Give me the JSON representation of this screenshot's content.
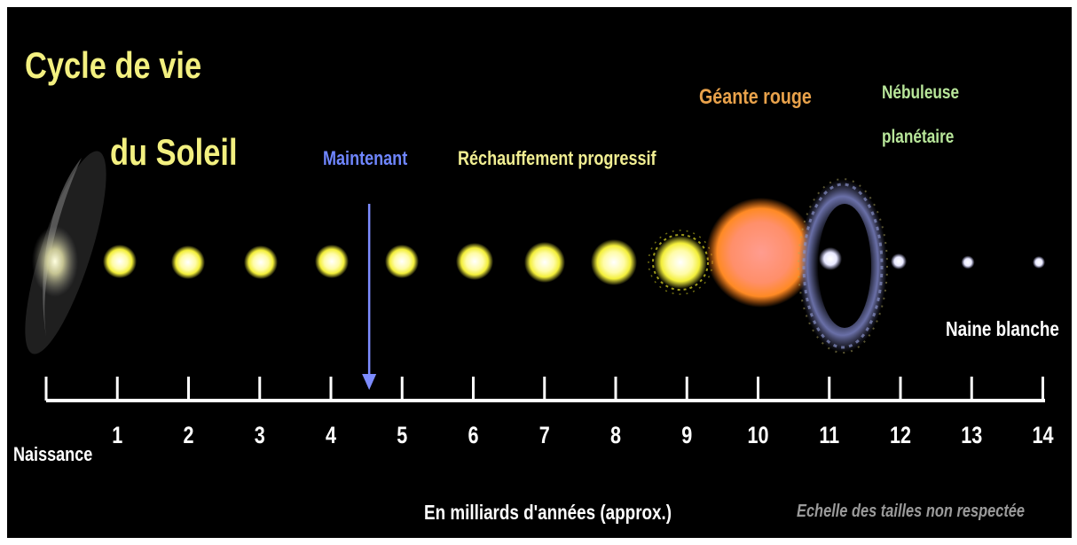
{
  "title": {
    "line1": "Cycle de vie",
    "line2": "du Soleil"
  },
  "labels": {
    "now": "Maintenant",
    "warming": "Réchauffement progressif",
    "red_giant": "Géante rouge",
    "nebula_line1": "Nébuleuse",
    "nebula_line2": "planétaire",
    "white_dwarf": "Naine blanche",
    "birth": "Naissance"
  },
  "axis": {
    "unit_label": "En milliards d'années (approx.)",
    "ticks": [
      "1",
      "2",
      "3",
      "4",
      "5",
      "6",
      "7",
      "8",
      "9",
      "10",
      "11",
      "12",
      "13",
      "14"
    ]
  },
  "note": "Echelle des tailles non respectée",
  "now_marker_billion_years": 4.6,
  "stages": [
    {
      "kind": "nebula"
    },
    {
      "kind": "star"
    },
    {
      "kind": "star"
    },
    {
      "kind": "star"
    },
    {
      "kind": "star"
    },
    {
      "kind": "star"
    },
    {
      "kind": "star"
    },
    {
      "kind": "star"
    },
    {
      "kind": "star"
    },
    {
      "kind": "star-flaring"
    },
    {
      "kind": "red-giant"
    },
    {
      "kind": "planetary-nebula"
    },
    {
      "kind": "white-dwarf"
    },
    {
      "kind": "white-dwarf"
    },
    {
      "kind": "white-dwarf"
    }
  ],
  "colors": {
    "background": "#000000",
    "title": "#f3f080",
    "now_marker": "#7d8cff",
    "red_giant": "#ff8a3a",
    "white_dwarf": "#f4f4ff"
  }
}
